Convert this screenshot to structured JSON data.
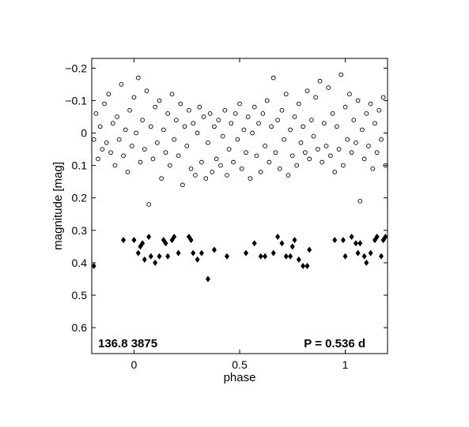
{
  "chart_data": {
    "type": "scatter",
    "title": "",
    "xlabel": "phase",
    "ylabel": "magnitude  [mag]",
    "xlim": [
      -0.2,
      1.2
    ],
    "ylim": [
      -0.23,
      0.68
    ],
    "y_inverted": true,
    "grid": false,
    "x_ticks": [
      0,
      0.5,
      1
    ],
    "x_tick_labels": [
      "0",
      "0.5",
      "1"
    ],
    "y_ticks": [
      -0.2,
      -0.1,
      0,
      0.1,
      0.2,
      0.3,
      0.4,
      0.5,
      0.6
    ],
    "y_tick_labels": [
      "−0.2",
      "−0.1",
      "0",
      "0.1",
      "0.2",
      "0.3",
      "0.4",
      "0.5",
      "0.6"
    ],
    "annotations": {
      "left": "136.8 3875",
      "right": "P = 0.536 d"
    },
    "series": [
      {
        "marker": "open-circle",
        "color": "#000000",
        "points": [
          [
            -0.19,
            0.02
          ],
          [
            -0.18,
            -0.06
          ],
          [
            -0.17,
            0.08
          ],
          [
            -0.16,
            -0.02
          ],
          [
            -0.15,
            0.05
          ],
          [
            -0.14,
            -0.09
          ],
          [
            -0.13,
            0.03
          ],
          [
            -0.12,
            -0.12
          ],
          [
            -0.11,
            0.06
          ],
          [
            -0.1,
            -0.03
          ],
          [
            -0.09,
            0.1
          ],
          [
            -0.08,
            -0.05
          ],
          [
            -0.07,
            0.02
          ],
          [
            -0.06,
            -0.15
          ],
          [
            -0.05,
            0.07
          ],
          [
            -0.04,
            -0.01
          ],
          [
            -0.03,
            0.12
          ],
          [
            -0.02,
            -0.07
          ],
          [
            -0.01,
            0.04
          ],
          [
            0.0,
            -0.11
          ],
          [
            0.01,
            0.0
          ],
          [
            0.02,
            -0.17
          ],
          [
            0.03,
            0.09
          ],
          [
            0.04,
            -0.04
          ],
          [
            0.05,
            0.05
          ],
          [
            0.06,
            -0.13
          ],
          [
            0.07,
            0.22
          ],
          [
            0.08,
            -0.02
          ],
          [
            0.09,
            0.08
          ],
          [
            0.1,
            -0.08
          ],
          [
            0.11,
            0.03
          ],
          [
            0.12,
            -0.1
          ],
          [
            0.13,
            0.14
          ],
          [
            0.14,
            -0.01
          ],
          [
            0.15,
            0.06
          ],
          [
            0.16,
            -0.06
          ],
          [
            0.17,
            0.1
          ],
          [
            0.18,
            -0.12
          ],
          [
            0.19,
            0.02
          ],
          [
            0.2,
            -0.04
          ],
          [
            0.21,
            0.07
          ],
          [
            0.22,
            -0.09
          ],
          [
            0.23,
            0.16
          ],
          [
            0.24,
            -0.02
          ],
          [
            0.25,
            0.04
          ],
          [
            0.26,
            -0.07
          ],
          [
            0.27,
            0.11
          ],
          [
            0.28,
            -0.03
          ],
          [
            0.29,
            0.13
          ],
          [
            0.3,
            0.0
          ],
          [
            0.31,
            -0.08
          ],
          [
            0.32,
            0.09
          ],
          [
            0.33,
            -0.05
          ],
          [
            0.34,
            0.14
          ],
          [
            0.35,
            0.03
          ],
          [
            0.36,
            -0.06
          ],
          [
            0.37,
            0.12
          ],
          [
            0.38,
            -0.02
          ],
          [
            0.39,
            0.08
          ],
          [
            0.4,
            -0.04
          ],
          [
            0.41,
            0.1
          ],
          [
            0.42,
            0.01
          ],
          [
            0.43,
            -0.07
          ],
          [
            0.44,
            0.13
          ],
          [
            0.45,
            0.05
          ],
          [
            0.46,
            -0.03
          ],
          [
            0.47,
            0.09
          ],
          [
            0.48,
            -0.06
          ],
          [
            0.49,
            0.02
          ],
          [
            0.5,
            -0.09
          ],
          [
            0.51,
            0.11
          ],
          [
            0.52,
            -0.01
          ],
          [
            0.53,
            0.06
          ],
          [
            0.54,
            -0.05
          ],
          [
            0.55,
            0.14
          ],
          [
            0.56,
            0.0
          ],
          [
            0.57,
            -0.08
          ],
          [
            0.58,
            0.07
          ],
          [
            0.59,
            -0.03
          ],
          [
            0.6,
            0.12
          ],
          [
            0.61,
            -0.06
          ],
          [
            0.62,
            0.04
          ],
          [
            0.63,
            -0.1
          ],
          [
            0.64,
            0.09
          ],
          [
            0.65,
            -0.02
          ],
          [
            0.66,
            -0.17
          ],
          [
            0.67,
            0.06
          ],
          [
            0.68,
            -0.04
          ],
          [
            0.69,
            0.11
          ],
          [
            0.7,
            -0.07
          ],
          [
            0.71,
            0.02
          ],
          [
            0.72,
            -0.12
          ],
          [
            0.73,
            0.13
          ],
          [
            0.74,
            -0.01
          ],
          [
            0.75,
            0.07
          ],
          [
            0.76,
            -0.05
          ],
          [
            0.77,
            0.1
          ],
          [
            0.78,
            -0.09
          ],
          [
            0.79,
            0.03
          ],
          [
            0.8,
            -0.02
          ],
          [
            0.81,
            0.06
          ],
          [
            0.82,
            -0.13
          ],
          [
            0.83,
            0.08
          ],
          [
            0.84,
            -0.04
          ],
          [
            0.85,
            0.01
          ],
          [
            0.86,
            -0.11
          ],
          [
            0.87,
            0.05
          ],
          [
            0.88,
            -0.16
          ],
          [
            0.89,
            0.09
          ],
          [
            0.9,
            -0.03
          ],
          [
            0.91,
            0.04
          ],
          [
            0.92,
            -0.14
          ],
          [
            0.93,
            0.07
          ],
          [
            0.94,
            -0.06
          ],
          [
            0.95,
            0.12
          ],
          [
            0.96,
            -0.02
          ],
          [
            0.97,
            0.05
          ],
          [
            0.98,
            -0.18
          ],
          [
            0.99,
            0.1
          ],
          [
            1.0,
            -0.08
          ],
          [
            1.01,
            0.02
          ],
          [
            1.02,
            -0.12
          ],
          [
            1.03,
            0.06
          ],
          [
            1.04,
            -0.04
          ],
          [
            1.05,
            0.03
          ],
          [
            1.06,
            -0.1
          ],
          [
            1.07,
            0.21
          ],
          [
            1.08,
            -0.01
          ],
          [
            1.09,
            0.08
          ],
          [
            1.1,
            -0.06
          ],
          [
            1.11,
            0.04
          ],
          [
            1.12,
            -0.09
          ],
          [
            1.13,
            0.11
          ],
          [
            1.14,
            -0.03
          ],
          [
            1.15,
            0.06
          ],
          [
            1.16,
            -0.07
          ],
          [
            1.17,
            0.02
          ],
          [
            1.18,
            -0.11
          ],
          [
            1.19,
            0.1
          ]
        ]
      },
      {
        "marker": "filled-diamond",
        "color": "#000000",
        "points": [
          [
            -0.19,
            0.41
          ],
          [
            -0.05,
            0.33
          ],
          [
            0.0,
            0.33
          ],
          [
            0.02,
            0.37
          ],
          [
            0.03,
            0.35
          ],
          [
            0.04,
            0.34
          ],
          [
            0.05,
            0.39
          ],
          [
            0.07,
            0.32
          ],
          [
            0.08,
            0.38
          ],
          [
            0.1,
            0.4
          ],
          [
            0.12,
            0.38
          ],
          [
            0.14,
            0.33
          ],
          [
            0.15,
            0.34
          ],
          [
            0.16,
            0.38
          ],
          [
            0.18,
            0.33
          ],
          [
            0.19,
            0.32
          ],
          [
            0.21,
            0.37
          ],
          [
            0.26,
            0.32
          ],
          [
            0.27,
            0.33
          ],
          [
            0.28,
            0.37
          ],
          [
            0.3,
            0.39
          ],
          [
            0.32,
            0.37
          ],
          [
            0.35,
            0.45
          ],
          [
            0.38,
            0.36
          ],
          [
            0.44,
            0.38
          ],
          [
            0.53,
            0.37
          ],
          [
            0.57,
            0.34
          ],
          [
            0.6,
            0.38
          ],
          [
            0.62,
            0.38
          ],
          [
            0.66,
            0.37
          ],
          [
            0.68,
            0.32
          ],
          [
            0.7,
            0.34
          ],
          [
            0.72,
            0.38
          ],
          [
            0.74,
            0.38
          ],
          [
            0.75,
            0.35
          ],
          [
            0.76,
            0.33
          ],
          [
            0.78,
            0.39
          ],
          [
            0.8,
            0.41
          ],
          [
            0.82,
            0.41
          ],
          [
            0.83,
            0.36
          ],
          [
            0.95,
            0.33
          ],
          [
            0.99,
            0.33
          ],
          [
            1.0,
            0.38
          ],
          [
            1.03,
            0.32
          ],
          [
            1.05,
            0.34
          ],
          [
            1.06,
            0.37
          ],
          [
            1.07,
            0.34
          ],
          [
            1.09,
            0.38
          ],
          [
            1.1,
            0.4
          ],
          [
            1.12,
            0.37
          ],
          [
            1.14,
            0.33
          ],
          [
            1.15,
            0.32
          ],
          [
            1.17,
            0.38
          ],
          [
            1.18,
            0.33
          ],
          [
            1.19,
            0.32
          ]
        ]
      }
    ]
  }
}
